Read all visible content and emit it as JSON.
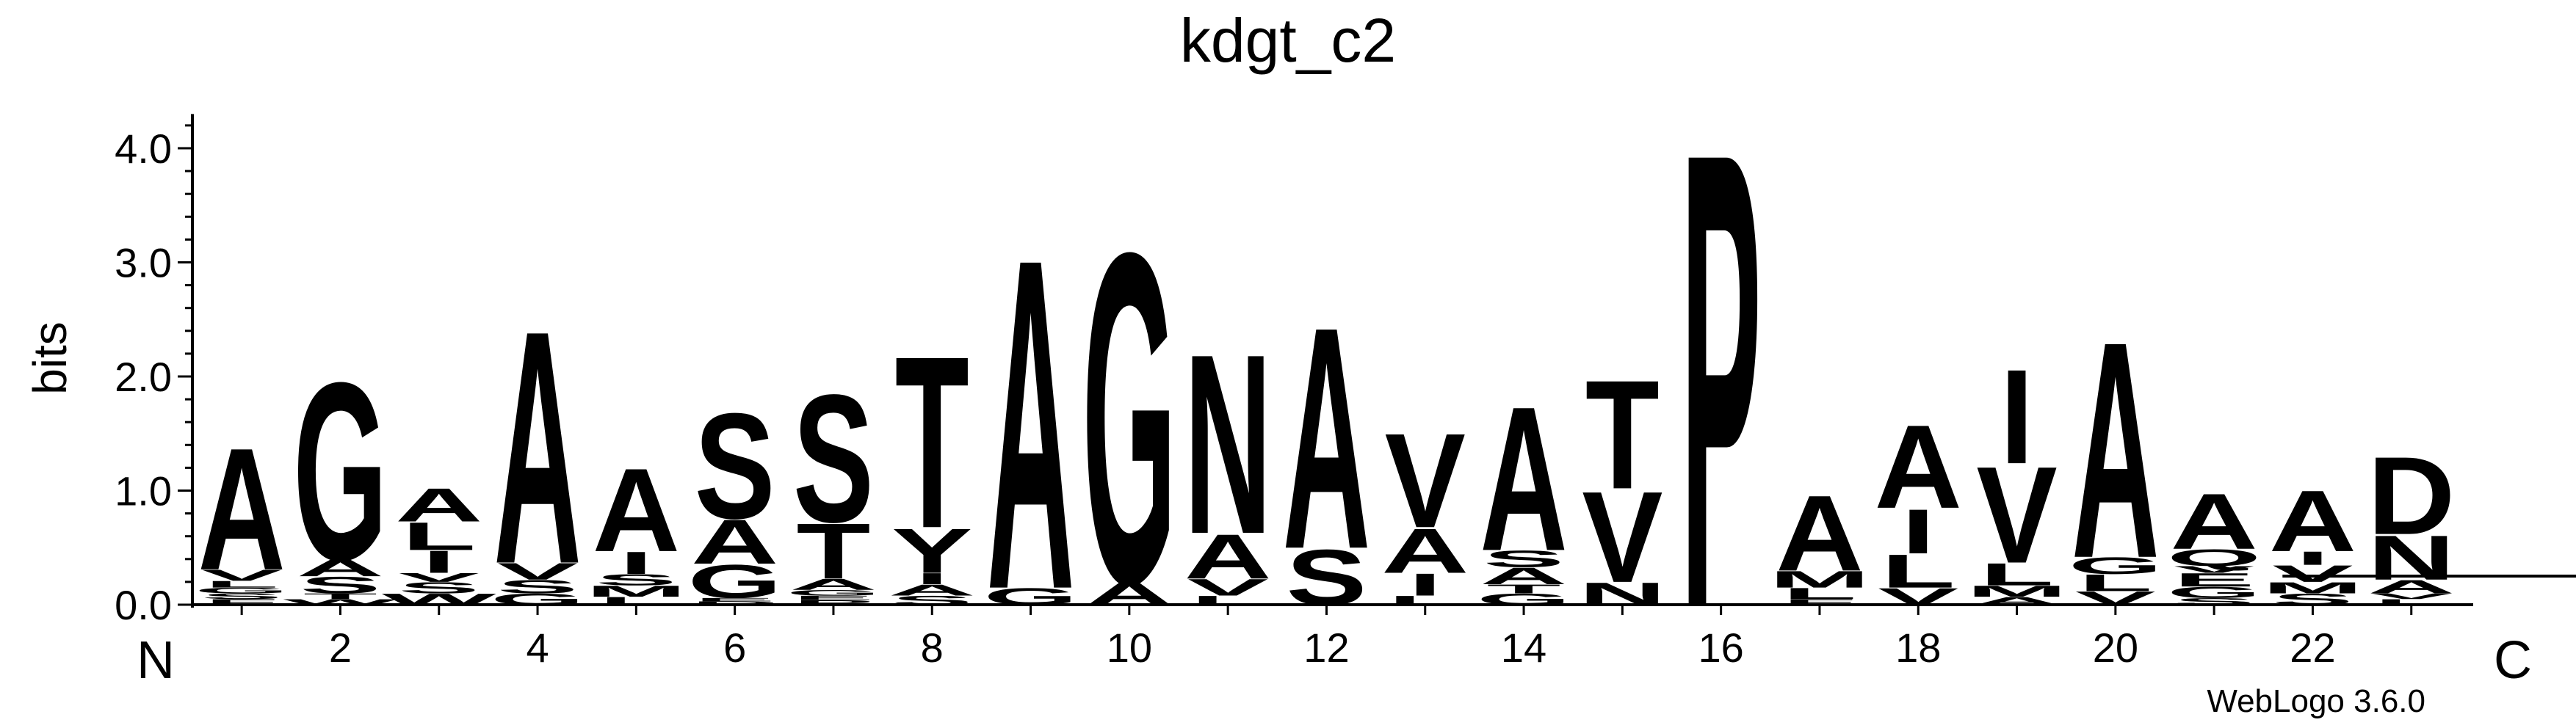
{
  "chart_data": {
    "type": "sequence-logo",
    "title": "kdgt_c2",
    "ylabel": "bits",
    "ylim": [
      0,
      4.3
    ],
    "yticks": [
      "0.0",
      "1.0",
      "2.0",
      "3.0",
      "4.0"
    ],
    "xticks": [
      "2",
      "4",
      "6",
      "8",
      "10",
      "12",
      "14",
      "16",
      "18",
      "20",
      "22"
    ],
    "n_terminal_label": "N",
    "c_terminal_label": "C",
    "credit": "WebLogo 3.6.0",
    "colors": {
      "hydrophobic": "#000000",
      "small": "#008000",
      "glycine": "#ffa500",
      "polar": "#ff0000",
      "acidic": "#0000cc"
    },
    "positions": [
      {
        "pos": 1,
        "letters": [
          [
            "F",
            0.05
          ],
          [
            "S",
            0.05
          ],
          [
            "G",
            0.05
          ],
          [
            "L",
            0.06
          ],
          [
            "V",
            0.1
          ],
          [
            "A",
            1.1
          ]
        ]
      },
      {
        "pos": 2,
        "letters": [
          [
            "W",
            0.05
          ],
          [
            "T",
            0.05
          ],
          [
            "S",
            0.15
          ],
          [
            "A",
            0.15
          ],
          [
            "G",
            1.6
          ]
        ]
      },
      {
        "pos": 3,
        "letters": [
          [
            "W",
            0.1
          ],
          [
            "S",
            0.1
          ],
          [
            "V",
            0.08
          ],
          [
            "I",
            0.2
          ],
          [
            "L",
            0.25
          ],
          [
            "A",
            0.3
          ]
        ]
      },
      {
        "pos": 4,
        "letters": [
          [
            "G",
            0.1
          ],
          [
            "S",
            0.12
          ],
          [
            "V",
            0.15
          ],
          [
            "A",
            2.1
          ]
        ]
      },
      {
        "pos": 5,
        "letters": [
          [
            "L",
            0.07
          ],
          [
            "M",
            0.1
          ],
          [
            "S",
            0.1
          ],
          [
            "I",
            0.2
          ],
          [
            "A",
            0.75
          ]
        ]
      },
      {
        "pos": 6,
        "letters": [
          [
            "D",
            0.03
          ],
          [
            "E",
            0.03
          ],
          [
            "G",
            0.3
          ],
          [
            "A",
            0.4
          ],
          [
            "S",
            0.95
          ]
        ]
      },
      {
        "pos": 7,
        "letters": [
          [
            "P",
            0.04
          ],
          [
            "E",
            0.04
          ],
          [
            "G",
            0.05
          ],
          [
            "A",
            0.1
          ],
          [
            "T",
            0.5
          ],
          [
            "S",
            1.15
          ]
        ]
      },
      {
        "pos": 8,
        "letters": [
          [
            "S",
            0.08
          ],
          [
            "A",
            0.1
          ],
          [
            "I",
            0.1
          ],
          [
            "Y",
            0.4
          ],
          [
            "T",
            1.55
          ]
        ]
      },
      {
        "pos": 9,
        "letters": [
          [
            "G",
            0.15
          ],
          [
            "A",
            2.98
          ]
        ]
      },
      {
        "pos": 10,
        "letters": [
          [
            "A",
            0.2
          ],
          [
            "G",
            2.98
          ]
        ]
      },
      {
        "pos": 11,
        "letters": [
          [
            "L",
            0.08
          ],
          [
            "V",
            0.15
          ],
          [
            "A",
            0.4
          ],
          [
            "N",
            1.62
          ]
        ]
      },
      {
        "pos": 12,
        "letters": [
          [
            "S",
            0.5
          ],
          [
            "A",
            2.0
          ]
        ]
      },
      {
        "pos": 13,
        "letters": [
          [
            "L",
            0.08
          ],
          [
            "I",
            0.2
          ],
          [
            "A",
            0.4
          ],
          [
            "V",
            0.85
          ]
        ]
      },
      {
        "pos": 14,
        "letters": [
          [
            "G",
            0.1
          ],
          [
            "T",
            0.08
          ],
          [
            "A",
            0.15
          ],
          [
            "S",
            0.15
          ],
          [
            "A",
            1.3
          ]
        ]
      },
      {
        "pos": 15,
        "letters": [
          [
            "N",
            0.2
          ],
          [
            "V",
            0.82
          ],
          [
            "T",
            0.98
          ]
        ]
      },
      {
        "pos": 16,
        "letters": [
          [
            "P",
            4.1
          ]
        ]
      },
      {
        "pos": 17,
        "letters": [
          [
            "F",
            0.05
          ],
          [
            "L",
            0.1
          ],
          [
            "M",
            0.15
          ],
          [
            "A",
            0.68
          ]
        ]
      },
      {
        "pos": 18,
        "letters": [
          [
            "V",
            0.15
          ],
          [
            "L",
            0.3
          ],
          [
            "I",
            0.4
          ],
          [
            "A",
            0.75
          ]
        ]
      },
      {
        "pos": 19,
        "letters": [
          [
            "A",
            0.07
          ],
          [
            "M",
            0.1
          ],
          [
            "L",
            0.2
          ],
          [
            "V",
            0.87
          ],
          [
            "I",
            0.85
          ]
        ]
      },
      {
        "pos": 20,
        "letters": [
          [
            "V",
            0.12
          ],
          [
            "L",
            0.15
          ],
          [
            "G",
            0.15
          ],
          [
            "A",
            1.95
          ]
        ]
      },
      {
        "pos": 21,
        "letters": [
          [
            "S",
            0.06
          ],
          [
            "G",
            0.1
          ],
          [
            "E",
            0.12
          ],
          [
            "V",
            0.06
          ],
          [
            "Q",
            0.15
          ],
          [
            "A",
            0.5
          ]
        ]
      },
      {
        "pos": 22,
        "letters": [
          [
            "S",
            0.1
          ],
          [
            "M",
            0.1
          ],
          [
            "V",
            0.15
          ],
          [
            "I",
            0.12
          ],
          [
            "A",
            0.55
          ]
        ]
      },
      {
        "pos": 23,
        "letters": [
          [
            "L",
            0.05
          ],
          [
            "V",
            0.05
          ],
          [
            "A",
            0.12
          ],
          [
            "N",
            0.4
          ],
          [
            "D",
            0.7
          ]
        ]
      }
    ]
  }
}
